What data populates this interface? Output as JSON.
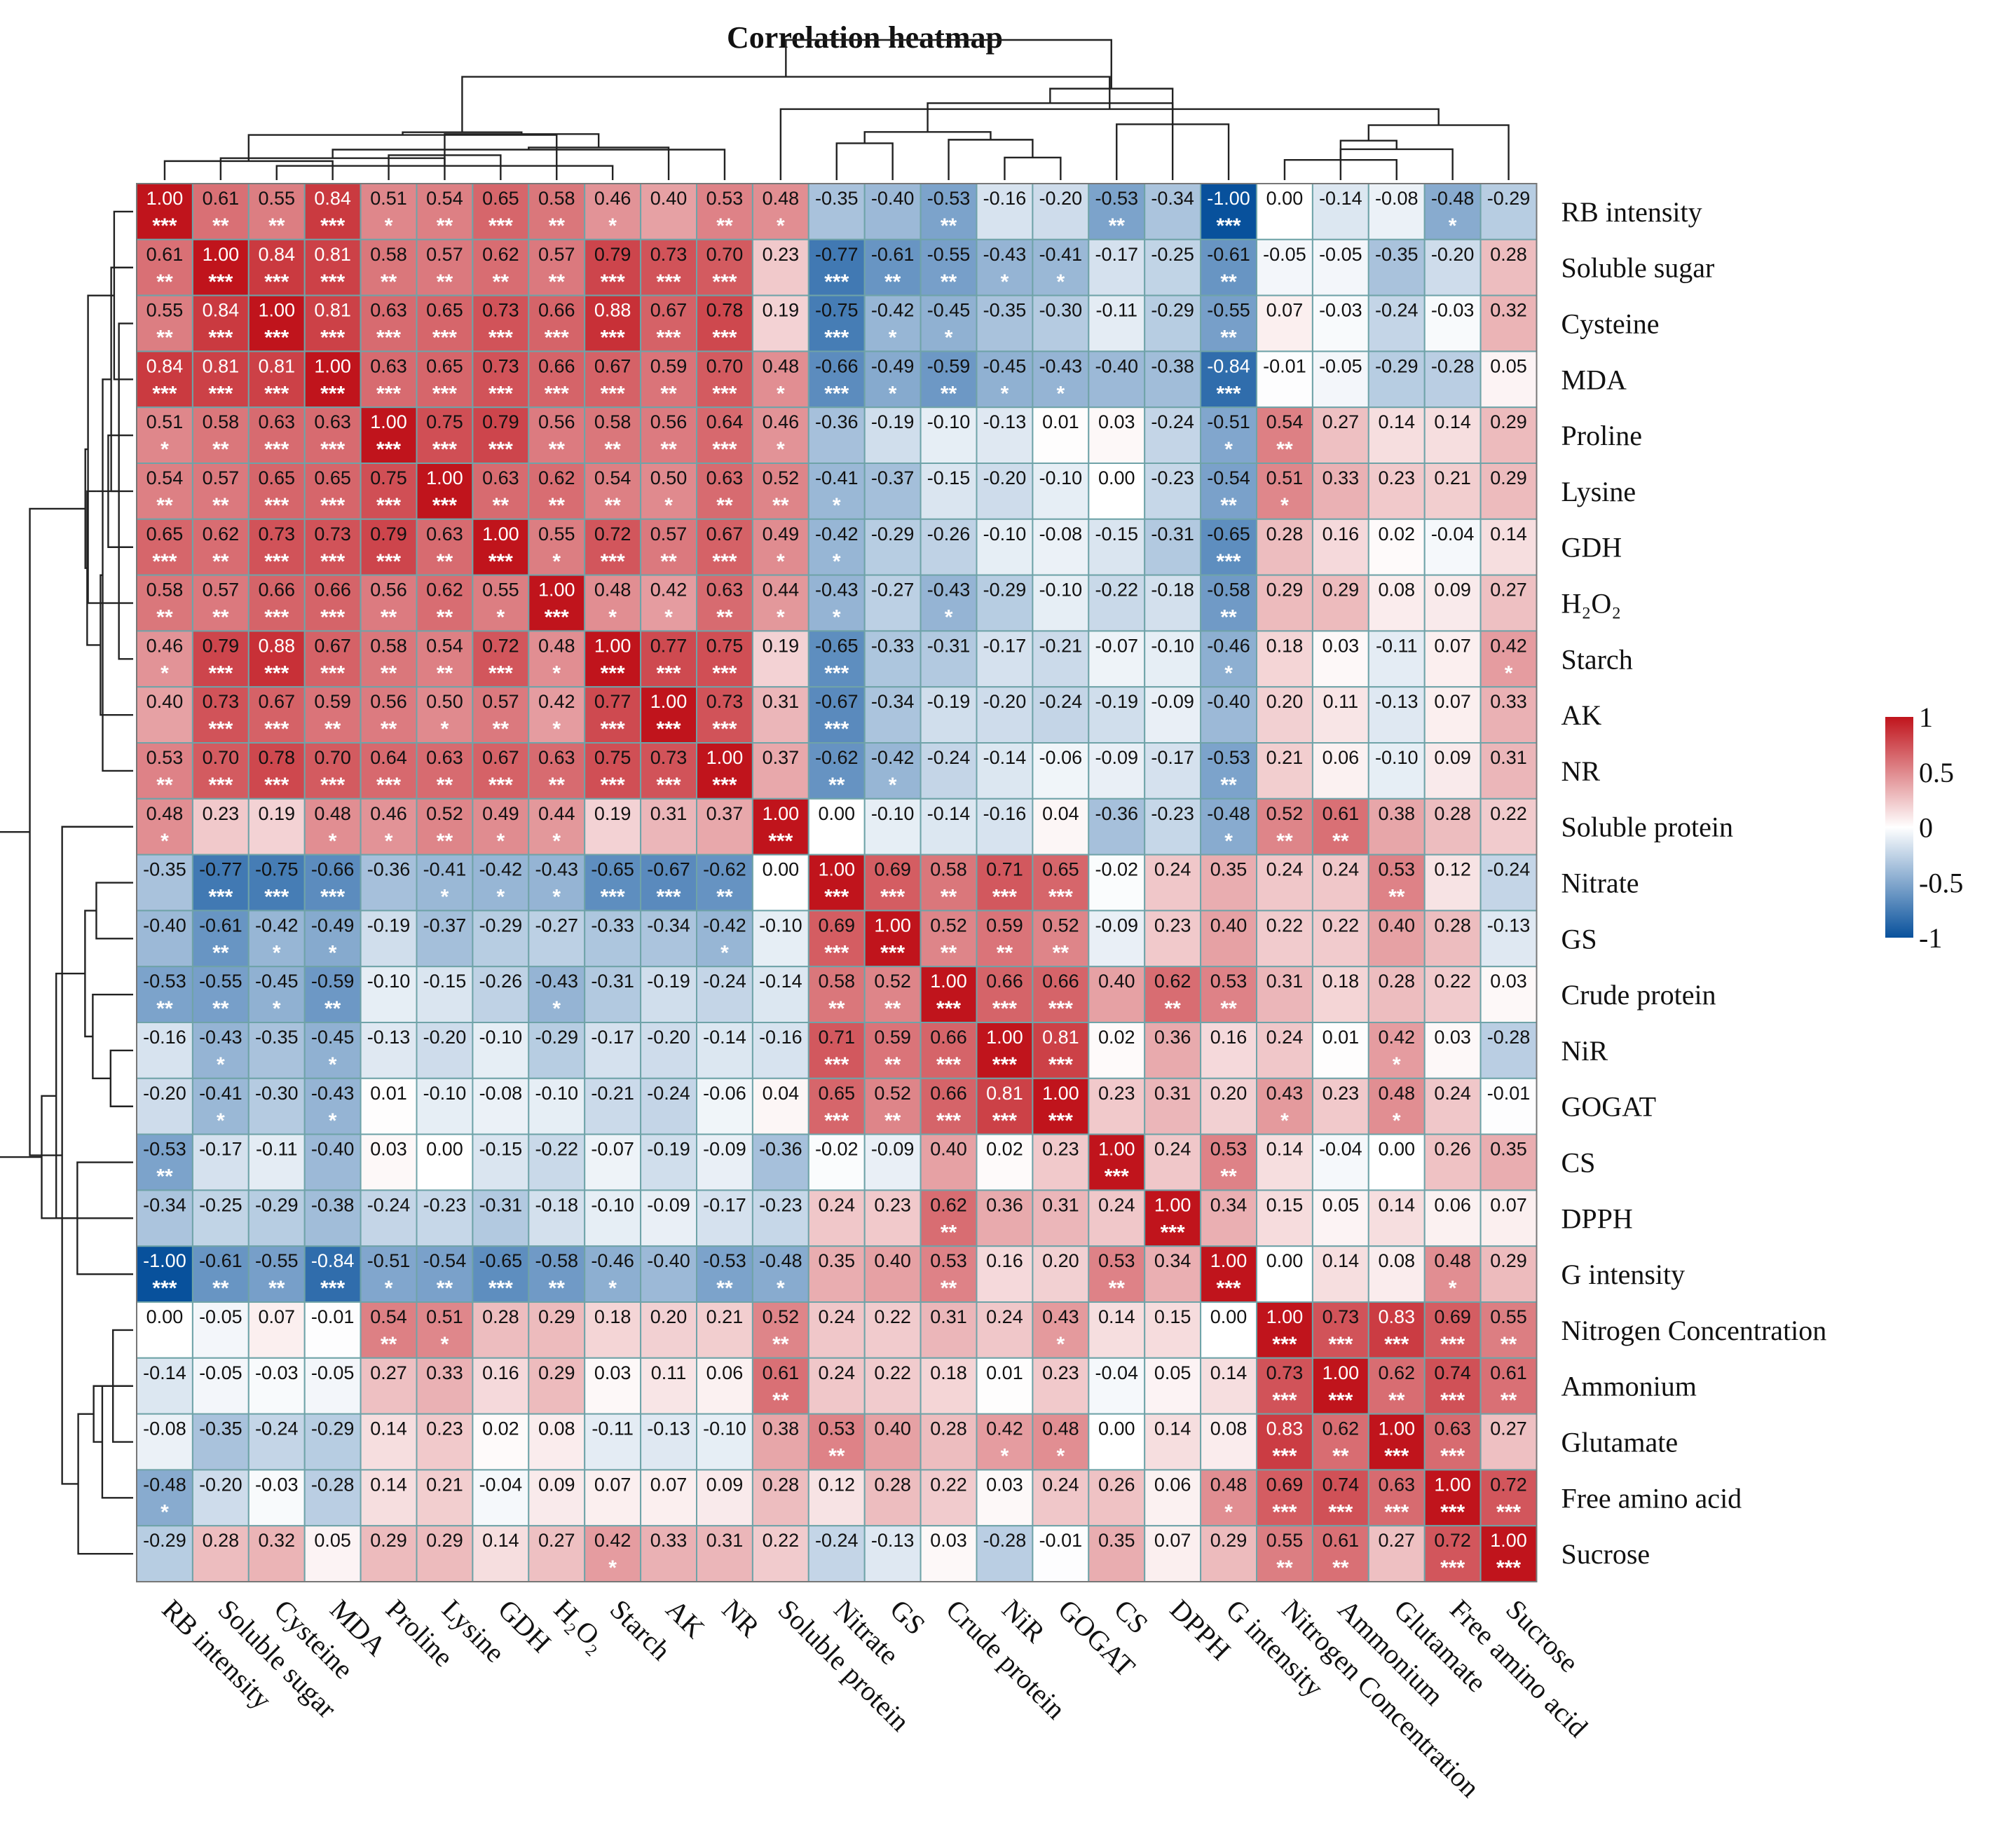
{
  "chart_data": {
    "type": "heatmap",
    "title": "Correlation heatmap",
    "labels": [
      "RB intensity",
      "Soluble sugar",
      "Cysteine",
      "MDA",
      "Proline",
      "Lysine",
      "GDH",
      "H₂O₂",
      "Starch",
      "AK",
      "NR",
      "Soluble protein",
      "Nitrate",
      "GS",
      "Crude protein",
      "NiR",
      "GOGAT",
      "CS",
      "DPPH",
      "G intensity",
      "Nitrogen Concentration",
      "Ammonium",
      "Glutamate",
      "Free amino acid",
      "Sucrose"
    ],
    "values": [
      [
        1.0,
        0.61,
        0.55,
        0.84,
        0.51,
        0.54,
        0.65,
        0.58,
        0.46,
        0.4,
        0.53,
        0.48,
        -0.35,
        -0.4,
        -0.53,
        -0.16,
        -0.2,
        -0.53,
        -0.34,
        -1.0,
        0.0,
        -0.14,
        -0.08,
        -0.48,
        -0.29
      ],
      [
        0.61,
        1.0,
        0.84,
        0.81,
        0.58,
        0.57,
        0.62,
        0.57,
        0.79,
        0.73,
        0.7,
        0.23,
        -0.77,
        -0.61,
        -0.55,
        -0.43,
        -0.41,
        -0.17,
        -0.25,
        -0.61,
        -0.05,
        -0.05,
        -0.35,
        -0.2,
        0.28
      ],
      [
        0.55,
        0.84,
        1.0,
        0.81,
        0.63,
        0.65,
        0.73,
        0.66,
        0.88,
        0.67,
        0.78,
        0.19,
        -0.75,
        -0.42,
        -0.45,
        -0.35,
        -0.3,
        -0.11,
        -0.29,
        -0.55,
        0.07,
        -0.03,
        -0.24,
        -0.03,
        0.32
      ],
      [
        0.84,
        0.81,
        0.81,
        1.0,
        0.63,
        0.65,
        0.73,
        0.66,
        0.67,
        0.59,
        0.7,
        0.48,
        -0.66,
        -0.49,
        -0.59,
        -0.45,
        -0.43,
        -0.4,
        -0.38,
        -0.84,
        -0.01,
        -0.05,
        -0.29,
        -0.28,
        0.05
      ],
      [
        0.51,
        0.58,
        0.63,
        0.63,
        1.0,
        0.75,
        0.79,
        0.56,
        0.58,
        0.56,
        0.64,
        0.46,
        -0.36,
        -0.19,
        -0.1,
        -0.13,
        0.01,
        0.03,
        -0.24,
        -0.51,
        0.54,
        0.27,
        0.14,
        0.14,
        0.29
      ],
      [
        0.54,
        0.57,
        0.65,
        0.65,
        0.75,
        1.0,
        0.63,
        0.62,
        0.54,
        0.5,
        0.63,
        0.52,
        -0.41,
        -0.37,
        -0.15,
        -0.2,
        -0.1,
        -0.0,
        -0.23,
        -0.54,
        0.51,
        0.33,
        0.23,
        0.21,
        0.29
      ],
      [
        0.65,
        0.62,
        0.73,
        0.73,
        0.79,
        0.63,
        1.0,
        0.55,
        0.72,
        0.57,
        0.67,
        0.49,
        -0.42,
        -0.29,
        -0.26,
        -0.1,
        -0.08,
        -0.15,
        -0.31,
        -0.65,
        0.28,
        0.16,
        0.02,
        -0.04,
        0.14
      ],
      [
        0.58,
        0.57,
        0.66,
        0.66,
        0.56,
        0.62,
        0.55,
        1.0,
        0.48,
        0.42,
        0.63,
        0.44,
        -0.43,
        -0.27,
        -0.43,
        -0.29,
        -0.1,
        -0.22,
        -0.18,
        -0.58,
        0.29,
        0.29,
        0.08,
        0.09,
        0.27
      ],
      [
        0.46,
        0.79,
        0.88,
        0.67,
        0.58,
        0.54,
        0.72,
        0.48,
        1.0,
        0.77,
        0.75,
        0.19,
        -0.65,
        -0.33,
        -0.31,
        -0.17,
        -0.21,
        -0.07,
        -0.1,
        -0.46,
        0.18,
        0.03,
        -0.11,
        0.07,
        0.42
      ],
      [
        0.4,
        0.73,
        0.67,
        0.59,
        0.56,
        0.5,
        0.57,
        0.42,
        0.77,
        1.0,
        0.73,
        0.31,
        -0.67,
        -0.34,
        -0.19,
        -0.2,
        -0.24,
        -0.19,
        -0.09,
        -0.4,
        0.2,
        0.11,
        -0.13,
        0.07,
        0.33
      ],
      [
        0.53,
        0.7,
        0.78,
        0.7,
        0.64,
        0.63,
        0.67,
        0.63,
        0.75,
        0.73,
        1.0,
        0.37,
        -0.62,
        -0.42,
        -0.24,
        -0.14,
        -0.06,
        -0.09,
        -0.17,
        -0.53,
        0.21,
        0.06,
        -0.1,
        0.09,
        0.31
      ],
      [
        0.48,
        0.23,
        0.19,
        0.48,
        0.46,
        0.52,
        0.49,
        0.44,
        0.19,
        0.31,
        0.37,
        1.0,
        0.0,
        -0.1,
        -0.14,
        -0.16,
        0.04,
        -0.36,
        -0.23,
        -0.48,
        0.52,
        0.61,
        0.38,
        0.28,
        0.22
      ],
      [
        -0.35,
        -0.77,
        -0.75,
        -0.66,
        -0.36,
        -0.41,
        -0.42,
        -0.43,
        -0.65,
        -0.67,
        -0.62,
        0.0,
        1.0,
        0.69,
        0.58,
        0.71,
        0.65,
        -0.02,
        0.24,
        0.35,
        0.24,
        0.24,
        0.53,
        0.12,
        -0.24
      ],
      [
        -0.4,
        -0.61,
        -0.42,
        -0.49,
        -0.19,
        -0.37,
        -0.29,
        -0.27,
        -0.33,
        -0.34,
        -0.42,
        -0.1,
        0.69,
        1.0,
        0.52,
        0.59,
        0.52,
        -0.09,
        0.23,
        0.4,
        0.22,
        0.22,
        0.4,
        0.28,
        -0.13
      ],
      [
        -0.53,
        -0.55,
        -0.45,
        -0.59,
        -0.1,
        -0.15,
        -0.26,
        -0.43,
        -0.31,
        -0.19,
        -0.24,
        -0.14,
        0.58,
        0.52,
        1.0,
        0.66,
        0.66,
        0.4,
        0.62,
        0.53,
        0.31,
        0.18,
        0.28,
        0.22,
        0.03
      ],
      [
        -0.16,
        -0.43,
        -0.35,
        -0.45,
        -0.13,
        -0.2,
        -0.1,
        -0.29,
        -0.17,
        -0.2,
        -0.14,
        -0.16,
        0.71,
        0.59,
        0.66,
        1.0,
        0.81,
        0.02,
        0.36,
        0.16,
        0.24,
        0.01,
        0.42,
        0.03,
        -0.28
      ],
      [
        -0.2,
        -0.41,
        -0.3,
        -0.43,
        0.01,
        -0.1,
        -0.08,
        -0.1,
        -0.21,
        -0.24,
        -0.06,
        0.04,
        0.65,
        0.52,
        0.66,
        0.81,
        1.0,
        0.23,
        0.31,
        0.2,
        0.43,
        0.23,
        0.48,
        0.24,
        -0.01
      ],
      [
        -0.53,
        -0.17,
        -0.11,
        -0.4,
        0.03,
        -0.0,
        -0.15,
        -0.22,
        -0.07,
        -0.19,
        -0.09,
        -0.36,
        -0.02,
        -0.09,
        0.4,
        0.02,
        0.23,
        1.0,
        0.24,
        0.53,
        0.14,
        -0.04,
        0.0,
        0.26,
        0.35
      ],
      [
        -0.34,
        -0.25,
        -0.29,
        -0.38,
        -0.24,
        -0.23,
        -0.31,
        -0.18,
        -0.1,
        -0.09,
        -0.17,
        -0.23,
        0.24,
        0.23,
        0.62,
        0.36,
        0.31,
        0.24,
        1.0,
        0.34,
        0.15,
        0.05,
        0.14,
        0.06,
        0.07
      ],
      [
        -1.0,
        -0.61,
        -0.55,
        -0.84,
        -0.51,
        -0.54,
        -0.65,
        -0.58,
        -0.46,
        -0.4,
        -0.53,
        -0.48,
        0.35,
        0.4,
        0.53,
        0.16,
        0.2,
        0.53,
        0.34,
        1.0,
        0.0,
        0.14,
        0.08,
        0.48,
        0.29
      ],
      [
        0.0,
        -0.05,
        0.07,
        -0.01,
        0.54,
        0.51,
        0.28,
        0.29,
        0.18,
        0.2,
        0.21,
        0.52,
        0.24,
        0.22,
        0.31,
        0.24,
        0.43,
        0.14,
        0.15,
        0.0,
        1.0,
        0.73,
        0.83,
        0.69,
        0.55
      ],
      [
        -0.14,
        -0.05,
        -0.03,
        -0.05,
        0.27,
        0.33,
        0.16,
        0.29,
        0.03,
        0.11,
        0.06,
        0.61,
        0.24,
        0.22,
        0.18,
        0.01,
        0.23,
        -0.04,
        0.05,
        0.14,
        0.73,
        1.0,
        0.62,
        0.74,
        0.61
      ],
      [
        -0.08,
        -0.35,
        -0.24,
        -0.29,
        0.14,
        0.23,
        0.02,
        0.08,
        -0.11,
        -0.13,
        -0.1,
        0.38,
        0.53,
        0.4,
        0.28,
        0.42,
        0.48,
        0.0,
        0.14,
        0.08,
        0.83,
        0.62,
        1.0,
        0.63,
        0.27
      ],
      [
        -0.48,
        -0.2,
        -0.03,
        -0.28,
        0.14,
        0.21,
        -0.04,
        0.09,
        0.07,
        0.07,
        0.09,
        0.28,
        0.12,
        0.28,
        0.22,
        0.03,
        0.24,
        0.26,
        0.06,
        0.48,
        0.69,
        0.74,
        0.63,
        1.0,
        0.72
      ],
      [
        -0.29,
        0.28,
        0.32,
        0.05,
        0.29,
        0.29,
        0.14,
        0.27,
        0.42,
        0.33,
        0.31,
        0.22,
        -0.24,
        -0.13,
        0.03,
        -0.28,
        -0.01,
        0.35,
        0.07,
        0.29,
        0.55,
        0.61,
        0.27,
        0.72,
        1.0
      ]
    ],
    "significance": [
      [
        "***",
        "**",
        "**",
        "***",
        "*",
        "**",
        "***",
        "**",
        "*",
        "",
        "**",
        "*",
        "",
        "",
        "**",
        "",
        "",
        "**",
        "",
        "***",
        "",
        "",
        "",
        "*",
        ""
      ],
      [
        "**",
        "***",
        "***",
        "***",
        "**",
        "**",
        "**",
        "**",
        "***",
        "***",
        "***",
        "",
        "***",
        "**",
        "**",
        "*",
        "*",
        "",
        "",
        "**",
        "",
        "",
        "",
        "",
        ""
      ],
      [
        "**",
        "***",
        "***",
        "***",
        "***",
        "***",
        "***",
        "***",
        "***",
        "***",
        "***",
        "",
        "***",
        "*",
        "*",
        "",
        "",
        "",
        "",
        "**",
        "",
        "",
        "",
        "",
        ""
      ],
      [
        "***",
        "***",
        "***",
        "***",
        "***",
        "***",
        "***",
        "***",
        "***",
        "**",
        "***",
        "*",
        "***",
        "*",
        "**",
        "*",
        "*",
        "",
        "",
        "***",
        "",
        "",
        "",
        "",
        ""
      ],
      [
        "*",
        "**",
        "***",
        "***",
        "***",
        "***",
        "***",
        "**",
        "**",
        "**",
        "***",
        "*",
        "",
        "",
        "",
        "",
        "",
        "",
        "",
        "*",
        "**",
        "",
        "",
        "",
        ""
      ],
      [
        "**",
        "**",
        "***",
        "***",
        "***",
        "***",
        "**",
        "**",
        "**",
        "*",
        "**",
        "**",
        "*",
        "",
        "",
        "",
        "",
        "",
        "",
        "**",
        "*",
        "",
        "",
        "",
        ""
      ],
      [
        "***",
        "**",
        "***",
        "***",
        "***",
        "**",
        "***",
        "*",
        "***",
        "**",
        "***",
        "*",
        "*",
        "",
        "",
        "",
        "",
        "",
        "",
        "***",
        "",
        "",
        "",
        "",
        ""
      ],
      [
        "**",
        "**",
        "***",
        "***",
        "**",
        "**",
        "*",
        "***",
        "*",
        "*",
        "**",
        "*",
        "*",
        "",
        "*",
        "",
        "",
        "",
        "",
        "**",
        "",
        "",
        "",
        "",
        ""
      ],
      [
        "*",
        "***",
        "***",
        "***",
        "**",
        "**",
        "***",
        "*",
        "***",
        "***",
        "***",
        "",
        "***",
        "",
        "",
        "",
        "",
        "",
        "",
        "*",
        "",
        "",
        "",
        "",
        "*"
      ],
      [
        "",
        "***",
        "***",
        "**",
        "**",
        "*",
        "**",
        "*",
        "***",
        "***",
        "***",
        "",
        "***",
        "",
        "",
        "",
        "",
        "",
        "",
        "",
        "",
        "",
        "",
        "",
        ""
      ],
      [
        "**",
        "***",
        "***",
        "***",
        "***",
        "**",
        "***",
        "**",
        "***",
        "***",
        "***",
        "",
        "**",
        "*",
        "",
        "",
        "",
        "",
        "",
        "**",
        "",
        "",
        "",
        "",
        ""
      ],
      [
        "*",
        "",
        "",
        "*",
        "*",
        "**",
        "*",
        "*",
        "",
        "",
        "",
        "***",
        "",
        "",
        "",
        "",
        "",
        "",
        "",
        "*",
        "**",
        "**",
        "",
        "",
        ""
      ],
      [
        "",
        "***",
        "***",
        "***",
        "",
        "*",
        "*",
        "*",
        "***",
        "***",
        "**",
        "",
        "***",
        "***",
        "**",
        "***",
        "***",
        "",
        "",
        "",
        "",
        "",
        "**",
        "",
        ""
      ],
      [
        "",
        "**",
        "*",
        "*",
        "",
        "",
        "",
        "",
        "",
        "",
        "*",
        "",
        "***",
        "***",
        "**",
        "**",
        "**",
        "",
        "",
        "",
        "",
        "",
        "",
        "",
        ""
      ],
      [
        "**",
        "**",
        "*",
        "**",
        "",
        "",
        "",
        "*",
        "",
        "",
        "",
        "",
        "**",
        "**",
        "***",
        "***",
        "***",
        "",
        "**",
        "**",
        "",
        "",
        "",
        "",
        ""
      ],
      [
        "",
        "*",
        "",
        "*",
        "",
        "",
        "",
        "",
        "",
        "",
        "",
        "",
        "***",
        "**",
        "***",
        "***",
        "***",
        "",
        "",
        "",
        "",
        "",
        "*",
        "",
        ""
      ],
      [
        "",
        "*",
        "",
        "*",
        "",
        "",
        "",
        "",
        "",
        "",
        "",
        "",
        "***",
        "**",
        "***",
        "***",
        "***",
        "",
        "",
        "",
        "*",
        "",
        "*",
        "",
        ""
      ],
      [
        "**",
        "",
        "",
        "",
        "",
        "",
        "",
        "",
        "",
        "",
        "",
        "",
        "",
        "",
        "",
        "",
        "",
        "***",
        "",
        "**",
        "",
        "",
        "",
        "",
        ""
      ],
      [
        "",
        "",
        "",
        "",
        "",
        "",
        "",
        "",
        "",
        "",
        "",
        "",
        "",
        "",
        "**",
        "",
        "",
        "",
        "***",
        "",
        "",
        "",
        "",
        "",
        ""
      ],
      [
        "***",
        "**",
        "**",
        "***",
        "*",
        "**",
        "***",
        "**",
        "*",
        "",
        "**",
        "*",
        "",
        "",
        "**",
        "",
        "",
        "**",
        "",
        "***",
        "",
        "",
        "",
        "*",
        ""
      ],
      [
        "",
        "",
        "",
        "",
        "**",
        "*",
        "",
        "",
        "",
        "",
        "",
        "**",
        "",
        "",
        "",
        "",
        "*",
        "",
        "",
        "",
        "***",
        "***",
        "***",
        "***",
        "**"
      ],
      [
        "",
        "",
        "",
        "",
        "",
        "",
        "",
        "",
        "",
        "",
        "",
        "**",
        "",
        "",
        "",
        "",
        "",
        "",
        "",
        "",
        "***",
        "***",
        "**",
        "***",
        "**"
      ],
      [
        "",
        "",
        "",
        "",
        "",
        "",
        "",
        "",
        "",
        "",
        "",
        "",
        "**",
        "",
        "",
        "*",
        "*",
        "",
        "",
        "",
        "***",
        "**",
        "***",
        "***",
        ""
      ],
      [
        "*",
        "",
        "",
        "",
        "",
        "",
        "",
        "",
        "",
        "",
        "",
        "",
        "",
        "",
        "",
        "",
        "",
        "",
        "",
        "*",
        "***",
        "***",
        "***",
        "***",
        "***"
      ],
      [
        "",
        "",
        "",
        "",
        "",
        "",
        "",
        "",
        "*",
        "",
        "",
        "",
        "",
        "",
        "",
        "",
        "",
        "",
        "",
        "",
        "**",
        "**",
        "",
        "***",
        "***"
      ]
    ],
    "colorbar": {
      "range": [
        -1,
        1
      ],
      "ticks": [
        "1",
        "0.5",
        "0",
        "-0.5",
        "-1"
      ],
      "tick_values": [
        1,
        0.5,
        0,
        -0.5,
        -1
      ]
    },
    "color_scale": {
      "neg": "#08519c",
      "mid": "#ffffff",
      "pos": "#c0141c"
    },
    "grid_color": "#6fa3a8",
    "dendrogram": true,
    "legend": "right"
  }
}
